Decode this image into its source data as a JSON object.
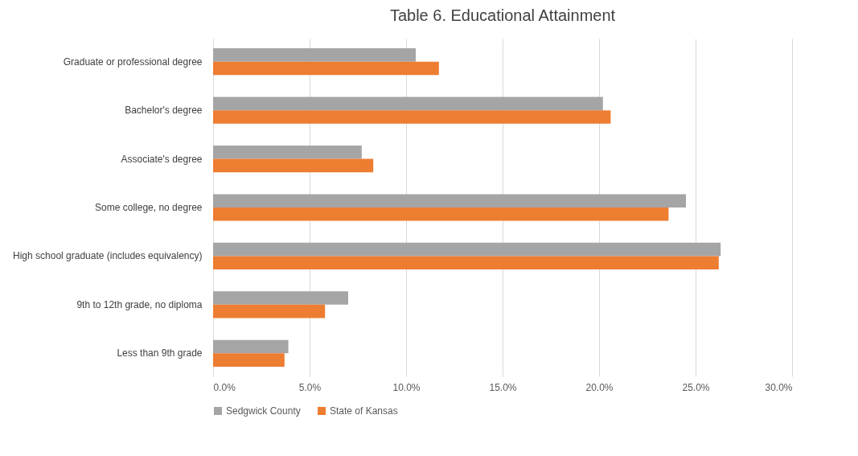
{
  "chart_data": {
    "type": "bar",
    "orientation": "horizontal",
    "title": "Table 6. Educational Attainment",
    "categories": [
      "Graduate or professional degree",
      "Bachelor's degree",
      "Associate's degree",
      "Some college, no degree",
      "High school graduate (includes equivalency)",
      "9th to 12th grade, no diploma",
      "Less than 9th grade"
    ],
    "series": [
      {
        "name": "Sedgwick County",
        "color": "#a5a5a5",
        "values": [
          10.5,
          20.2,
          7.7,
          24.5,
          26.3,
          7.0,
          3.9
        ]
      },
      {
        "name": "State of Kansas",
        "color": "#ed7d31",
        "values": [
          11.7,
          20.6,
          8.3,
          23.6,
          26.2,
          5.8,
          3.7
        ]
      }
    ],
    "xlim": [
      0,
      30
    ],
    "xticks": [
      {
        "value": 0,
        "label": "0.0%"
      },
      {
        "value": 5,
        "label": "5.0%"
      },
      {
        "value": 10,
        "label": "10.0%"
      },
      {
        "value": 15,
        "label": "15.0%"
      },
      {
        "value": 20,
        "label": "20.0%"
      },
      {
        "value": 25,
        "label": "25.0%"
      },
      {
        "value": 30,
        "label": "30.0%"
      }
    ],
    "grid": "x",
    "legend": "bottom"
  }
}
